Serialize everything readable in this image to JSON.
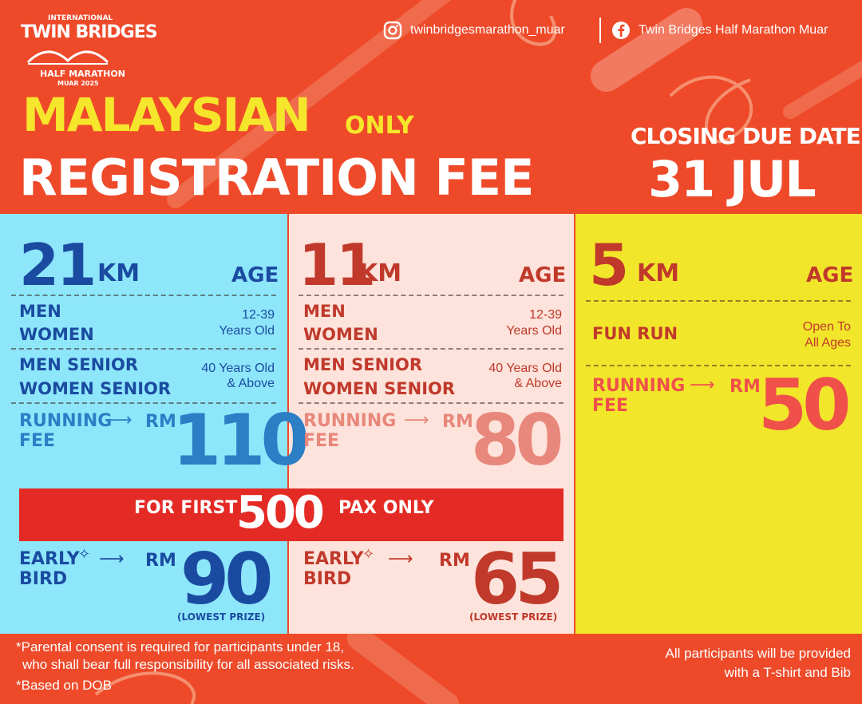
{
  "logo": {
    "line1": "INTERNATIONAL",
    "line2": "TWIN BRIDGES",
    "line3": "HALF MARATHON",
    "line4": "MUAR 2025"
  },
  "social": {
    "instagram": "twinbridgesmarathon_muar",
    "facebook": "Twin Bridges Half Marathon Muar"
  },
  "header": {
    "malaysian": "MALAYSIAN",
    "only": "ONLY",
    "title": "REGISTRATION FEE",
    "closing_label": "CLOSING DUE DATE:",
    "closing_date": "31 JUL"
  },
  "colors": {
    "bg": "#ee4a2a",
    "panel21": "#8ee6fb",
    "panel11": "#fde3db",
    "panel5": "#f2e62a",
    "banner": "#e42a24"
  },
  "km21": {
    "num": "21",
    "unit": "KM",
    "age_label": "AGE",
    "row1": {
      "a": "MEN",
      "b": "WOMEN",
      "age1": "12-39",
      "age2": "Years Old"
    },
    "row2": {
      "a": "MEN SENIOR",
      "b": "WOMEN SENIOR",
      "age1": "40 Years Old",
      "age2": "& Above"
    },
    "running": "RUNNING",
    "fee": "FEE",
    "rm": "RM",
    "price": "110",
    "early": "EARLY",
    "bird": "BIRD",
    "early_rm": "RM",
    "early_price": "90",
    "lowest": "(LOWEST PRIZE)"
  },
  "km11": {
    "num": "11",
    "unit": "KM",
    "age_label": "AGE",
    "row1": {
      "a": "MEN",
      "b": "WOMEN",
      "age1": "12-39",
      "age2": "Years Old"
    },
    "row2": {
      "a": "MEN SENIOR",
      "b": "WOMEN SENIOR",
      "age1": "40 Years Old",
      "age2": "& Above"
    },
    "running": "RUNNING",
    "fee": "FEE",
    "rm": "RM",
    "price": "80",
    "early": "EARLY",
    "bird": "BIRD",
    "early_rm": "RM",
    "early_price": "65",
    "lowest": "(LOWEST PRIZE)"
  },
  "km5": {
    "num": "5",
    "unit": "KM",
    "age_label": "AGE",
    "fun_run": "FUN RUN",
    "age1": "Open To",
    "age2": "All Ages",
    "running": "RUNNING",
    "fee": "FEE",
    "rm": "RM",
    "price": "50"
  },
  "banner": {
    "left": "FOR FIRST",
    "num": "500",
    "right": "PAX ONLY"
  },
  "footer": {
    "note1": "*Parental consent is required for participants under 18,",
    "note2": "who shall bear full responsibility for all associated risks.",
    "note3": "*Based on DOB",
    "right1": "All participants will be provided",
    "right2": "with a T-shirt and Bib"
  },
  "icons": {
    "instagram": "instagram-icon",
    "facebook": "facebook-icon",
    "arrow": "arrow-right-icon",
    "sparkle": "sparkle-icon",
    "bridge": "bridge-icon"
  }
}
